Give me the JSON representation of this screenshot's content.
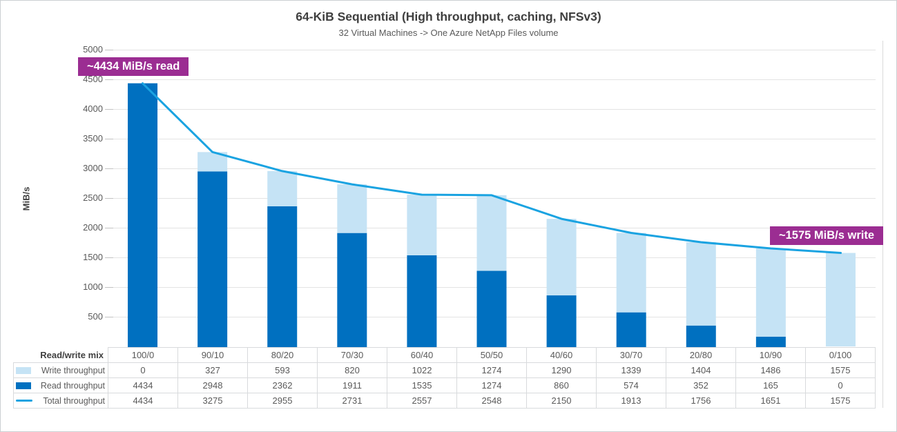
{
  "colors": {
    "read_bar": "#0070c0",
    "write_bar": "#c5e3f5",
    "total_line": "#1aa3e1",
    "annotation_bg": "#9b2d92",
    "grid": "#e3e3e3",
    "tick": "#c2c2c2",
    "plot_right_border": "#d9d9d9",
    "table_border": "#d8dadc",
    "title_text": "#3f3f3f",
    "axis_text": "#595959"
  },
  "chart_data": {
    "type": "bar+line",
    "title": "64-KiB Sequential (High throughput, caching, NFSv3)",
    "subtitle": "32 Virtual Machines -> One Azure NetApp Files volume",
    "ylabel": "MiB/s",
    "xlabel": "Read/write mix",
    "categories": [
      "100/0",
      "90/10",
      "80/20",
      "70/30",
      "60/40",
      "50/50",
      "40/60",
      "30/70",
      "20/80",
      "10/90",
      "0/100"
    ],
    "series": [
      {
        "name": "Write throughput",
        "role": "bar-top",
        "color": "#c5e3f5",
        "values": [
          0,
          327,
          593,
          820,
          1022,
          1274,
          1290,
          1339,
          1404,
          1486,
          1575
        ]
      },
      {
        "name": "Read throughput",
        "role": "bar-bottom",
        "color": "#0070c0",
        "values": [
          4434,
          2948,
          2362,
          1911,
          1535,
          1274,
          860,
          574,
          352,
          165,
          0
        ]
      },
      {
        "name": "Total throughput",
        "role": "line",
        "color": "#1aa3e1",
        "values": [
          4434,
          3275,
          2955,
          2731,
          2557,
          2548,
          2150,
          1913,
          1756,
          1651,
          1575
        ]
      }
    ],
    "ylim": [
      0,
      5000
    ],
    "ytick_step": 500,
    "grid": "horizontal-only",
    "legend_position": "data-table-left",
    "annotations": [
      {
        "text": "~4434 MiB/s read",
        "target": "read throughput at 100/0 mix"
      },
      {
        "text": "~1575 MiB/s write",
        "target": "write throughput at 0/100 mix"
      }
    ]
  }
}
